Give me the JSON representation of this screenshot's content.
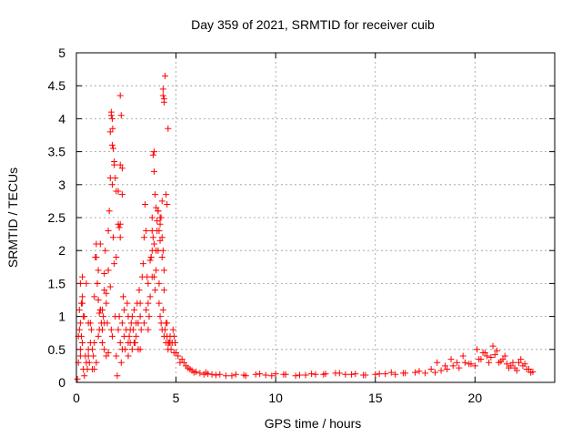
{
  "chart_data": {
    "type": "scatter",
    "title": "Day 359 of 2021, SRMTID for receiver cuib",
    "xlabel": "GPS time / hours",
    "ylabel": "SRMTID / TECUs",
    "xlim": [
      0,
      24
    ],
    "ylim": [
      0,
      5
    ],
    "xticks": [
      0,
      5,
      10,
      15,
      20
    ],
    "xtick_labels": [
      "0",
      "5",
      "10",
      "15",
      "20"
    ],
    "yticks": [
      0,
      0.5,
      1,
      1.5,
      2,
      2.5,
      3,
      3.5,
      4,
      4.5,
      5
    ],
    "ytick_labels": [
      "0",
      "0.5",
      "1",
      "1.5",
      "2",
      "2.5",
      "3",
      "3.5",
      "4",
      "4.5",
      "5"
    ],
    "grid": true,
    "marker": "+",
    "series": [
      {
        "name": "SRMTID",
        "color": "#ff0000",
        "x": [
          0.05,
          0.1,
          0.15,
          0.2,
          0.25,
          0.3,
          0.35,
          0.4,
          0.45,
          0.5,
          0.55,
          0.6,
          0.65,
          0.7,
          0.75,
          0.8,
          0.85,
          0.9,
          0.95,
          1.0,
          1.05,
          1.1,
          1.15,
          1.2,
          1.25,
          1.3,
          1.35,
          1.4,
          1.45,
          1.5,
          1.55,
          1.6,
          1.65,
          1.7,
          1.75,
          1.8,
          1.85,
          1.9,
          1.95,
          2.0,
          2.05,
          2.1,
          2.15,
          2.2,
          2.25,
          2.3,
          2.35,
          2.4,
          2.45,
          2.5,
          2.55,
          2.6,
          2.65,
          2.7,
          2.75,
          2.8,
          2.85,
          2.9,
          2.95,
          3.0,
          3.05,
          3.1,
          3.15,
          3.2,
          3.25,
          3.3,
          3.35,
          3.4,
          3.45,
          3.5,
          3.55,
          3.6,
          3.65,
          3.7,
          3.75,
          3.8,
          3.85,
          3.9,
          3.95,
          4.0,
          4.05,
          4.1,
          4.15,
          4.2,
          4.25,
          4.3,
          4.35,
          4.4,
          4.45,
          4.5,
          4.55,
          4.6,
          4.65,
          4.7,
          4.75,
          4.8,
          4.85,
          4.9,
          4.95,
          5.0,
          5.1,
          5.2,
          5.3,
          5.4,
          5.5,
          5.6,
          5.7,
          5.8,
          5.9,
          6.0,
          6.2,
          6.4,
          6.6,
          6.8,
          7.0,
          7.5,
          8.0,
          8.5,
          9.0,
          9.5,
          10.0,
          10.5,
          11.0,
          11.5,
          12.0,
          12.5,
          13.0,
          13.5,
          14.0,
          14.5,
          15.0,
          15.5,
          16.0,
          16.5,
          17.0,
          17.5,
          18.0,
          18.3,
          18.6,
          18.9,
          19.2,
          19.5,
          19.8,
          20.0,
          20.2,
          20.4,
          20.6,
          20.8,
          21.0,
          21.2,
          21.4,
          21.6,
          21.8,
          22.0,
          22.2,
          22.4,
          22.6,
          22.8,
          0.1,
          0.2,
          0.3,
          0.4,
          0.6,
          0.8,
          0.9,
          1.1,
          1.3,
          1.4,
          1.6,
          1.7,
          1.8,
          1.9,
          2.1,
          2.2,
          2.4,
          2.6,
          2.8,
          3.0,
          3.2,
          3.4,
          3.6,
          3.8,
          3.9,
          4.1,
          4.2,
          4.3,
          4.4,
          4.6,
          0.3,
          0.5,
          0.7,
          0.9,
          1.2,
          1.5,
          1.75,
          2.0,
          2.3,
          2.6,
          2.9,
          3.2,
          3.5,
          3.8,
          4.0,
          4.2,
          4.4,
          4.5,
          4.7,
          4.9,
          0.2,
          0.6,
          1.0,
          1.4,
          1.8,
          2.2,
          2.7,
          3.1,
          3.6,
          3.9,
          4.15,
          4.35,
          4.55,
          4.8,
          1.75,
          1.8,
          1.82,
          1.85,
          1.9,
          1.95,
          2.0,
          2.1,
          2.15,
          2.2,
          2.2,
          2.25,
          2.3,
          2.3,
          3.85,
          3.9,
          3.95,
          4.0,
          4.05,
          4.1,
          4.15,
          4.2,
          4.25,
          4.3,
          4.3,
          4.35,
          4.35,
          4.4,
          4.4,
          4.45,
          1.0,
          1.05,
          1.1,
          1.15,
          1.2,
          1.3,
          1.4,
          1.5,
          1.6,
          1.7,
          0.15,
          0.2,
          0.25,
          0.3,
          0.35,
          3.7,
          3.75,
          3.8,
          4.5,
          4.55,
          4.6,
          6.5,
          7.2,
          7.8,
          8.4,
          9.2,
          9.8,
          10.4,
          11.2,
          11.8,
          12.4,
          13.2,
          13.8,
          14.4,
          15.2,
          15.8,
          16.4,
          17.2,
          17.8,
          18.1,
          18.5,
          18.8,
          19.1,
          19.4,
          19.7,
          20.1,
          20.3,
          20.5,
          20.7,
          20.9,
          21.1,
          21.3,
          21.5,
          21.7,
          21.9,
          22.1,
          22.3,
          22.5,
          22.7,
          22.9
        ],
        "y": [
          0.05,
          0.3,
          0.8,
          1.5,
          1.2,
          0.6,
          0.2,
          0.1,
          0.4,
          0.3,
          0.2,
          0.5,
          0.3,
          0.6,
          0.8,
          0.5,
          0.4,
          1.3,
          1.9,
          2.1,
          1.5,
          0.7,
          0.8,
          1.1,
          0.9,
          0.6,
          1.0,
          1.4,
          2.0,
          1.2,
          0.9,
          1.7,
          2.6,
          3.8,
          4.05,
          3.0,
          2.2,
          1.8,
          1.0,
          0.4,
          0.1,
          0.8,
          1.0,
          0.6,
          0.3,
          0.9,
          1.3,
          0.7,
          0.5,
          0.8,
          1.2,
          1.0,
          0.7,
          0.6,
          0.9,
          0.5,
          0.8,
          1.1,
          0.6,
          0.7,
          1.2,
          0.9,
          1.4,
          1.0,
          0.8,
          1.6,
          1.8,
          2.2,
          2.7,
          2.3,
          1.6,
          1.2,
          1.0,
          1.3,
          1.9,
          2.5,
          2.2,
          1.6,
          1.4,
          1.7,
          2.3,
          2.0,
          1.2,
          1.0,
          0.9,
          0.8,
          1.1,
          0.7,
          0.8,
          0.6,
          0.7,
          0.5,
          0.6,
          0.7,
          0.5,
          0.6,
          0.8,
          0.7,
          0.6,
          0.45,
          0.4,
          0.3,
          0.35,
          0.3,
          0.25,
          0.22,
          0.2,
          0.18,
          0.15,
          0.16,
          0.14,
          0.12,
          0.13,
          0.12,
          0.11,
          0.1,
          0.12,
          0.1,
          0.12,
          0.11,
          0.13,
          0.12,
          0.1,
          0.11,
          0.12,
          0.13,
          0.14,
          0.12,
          0.13,
          0.11,
          0.12,
          0.13,
          0.12,
          0.14,
          0.15,
          0.14,
          0.15,
          0.18,
          0.2,
          0.25,
          0.22,
          0.3,
          0.28,
          0.25,
          0.35,
          0.45,
          0.4,
          0.38,
          0.42,
          0.3,
          0.35,
          0.28,
          0.25,
          0.22,
          0.3,
          0.25,
          0.2,
          0.15,
          0.7,
          0.4,
          1.6,
          1.0,
          0.4,
          0.2,
          0.6,
          1.7,
          1.1,
          0.9,
          2.3,
          3.1,
          3.6,
          3.3,
          2.9,
          2.4,
          1.1,
          0.6,
          1.0,
          0.9,
          0.5,
          0.9,
          1.5,
          1.6,
          2.1,
          2.6,
          2.4,
          1.9,
          1.7,
          0.6,
          1.2,
          1.5,
          0.9,
          0.2,
          1.1,
          0.4,
          0.8,
          1.9,
          0.5,
          0.4,
          0.6,
          1.2,
          1.1,
          2.3,
          2.0,
          2.5,
          1.4,
          0.9,
          0.6,
          0.45,
          0.5,
          0.9,
          0.3,
          0.5,
          0.7,
          3.3,
          0.8,
          0.5,
          0.8,
          3.5,
          1.5,
          2.0,
          0.9,
          0.6,
          4.1,
          4.0,
          3.85,
          3.55,
          3.35,
          3.1,
          2.9,
          2.4,
          2.35,
          2.2,
          4.35,
          4.05,
          3.25,
          2.85,
          3.45,
          3.2,
          2.85,
          2.65,
          2.45,
          2.6,
          2.3,
          2.15,
          2.5,
          2.75,
          2.2,
          4.45,
          4.35,
          4.3,
          4.25,
          4.65,
          1.9,
          1.5,
          1.25,
          1.05,
          2.1,
          0.8,
          1.65,
          1.35,
          0.45,
          1.45,
          1.1,
          0.9,
          0.7,
          1.3,
          1.0,
          1.85,
          1.9,
          2.0,
          2.85,
          2.7,
          3.85,
          0.15,
          0.12,
          0.1,
          0.11,
          0.13,
          0.1,
          0.12,
          0.11,
          0.13,
          0.12,
          0.14,
          0.12,
          0.11,
          0.13,
          0.15,
          0.14,
          0.17,
          0.2,
          0.3,
          0.25,
          0.35,
          0.3,
          0.4,
          0.28,
          0.5,
          0.35,
          0.45,
          0.3,
          0.55,
          0.48,
          0.32,
          0.4,
          0.22,
          0.3,
          0.18,
          0.35,
          0.28,
          0.2,
          0.16
        ]
      }
    ]
  }
}
